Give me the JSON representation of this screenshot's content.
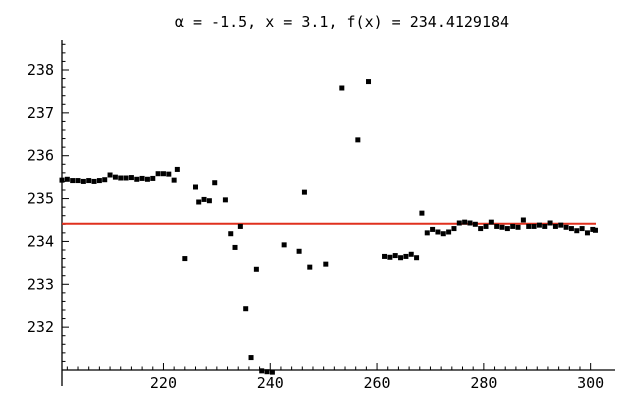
{
  "chart_data": {
    "type": "scatter",
    "title": "α = -1.5,  x = 3.1, f(x) = 234.4129184",
    "xlim": [
      201,
      301
    ],
    "ylim": [
      231,
      238.7
    ],
    "x_ticks": [
      220,
      240,
      260,
      280,
      300
    ],
    "y_ticks": [
      232,
      233,
      234,
      235,
      236,
      237,
      238
    ],
    "x_minor_step": 2,
    "y_minor_step": 0.2,
    "grid": false,
    "colors": {
      "points": "#000000",
      "reference_line": "#e0301e"
    },
    "reference_line": {
      "y": 234.4129184
    },
    "series": [
      {
        "points": [
          [
            201,
            235.43
          ],
          [
            202,
            235.45
          ],
          [
            203,
            235.42
          ],
          [
            204,
            235.42
          ],
          [
            205,
            235.4
          ],
          [
            206,
            235.42
          ],
          [
            207,
            235.4
          ],
          [
            208,
            235.42
          ],
          [
            209,
            235.44
          ],
          [
            210,
            235.55
          ],
          [
            211,
            235.5
          ],
          [
            212,
            235.48
          ],
          [
            213,
            235.48
          ],
          [
            214,
            235.49
          ],
          [
            215,
            235.45
          ],
          [
            216,
            235.47
          ],
          [
            217,
            235.45
          ],
          [
            218,
            235.47
          ],
          [
            219,
            235.58
          ],
          [
            220,
            235.58
          ],
          [
            221,
            235.57
          ],
          [
            222,
            235.43
          ],
          [
            222.6,
            235.68
          ],
          [
            224,
            233.6
          ],
          [
            226,
            235.27
          ],
          [
            226.6,
            234.92
          ],
          [
            227.6,
            234.98
          ],
          [
            228.6,
            234.95
          ],
          [
            229.6,
            235.37
          ],
          [
            231.6,
            234.97
          ],
          [
            232.6,
            234.18
          ],
          [
            233.4,
            233.86
          ],
          [
            234.4,
            234.35
          ],
          [
            235.4,
            232.43
          ],
          [
            236.4,
            231.29
          ],
          [
            237.4,
            233.35
          ],
          [
            238.4,
            230.98
          ],
          [
            239.4,
            230.96
          ],
          [
            240.4,
            230.95
          ],
          [
            242.6,
            233.92
          ],
          [
            245.4,
            233.77
          ],
          [
            246.4,
            235.15
          ],
          [
            247.4,
            233.4
          ],
          [
            250.4,
            233.47
          ],
          [
            253.4,
            237.58
          ],
          [
            256.4,
            236.37
          ],
          [
            258.4,
            237.73
          ],
          [
            261.4,
            233.65
          ],
          [
            262.4,
            233.63
          ],
          [
            263.4,
            233.67
          ],
          [
            264.4,
            233.62
          ],
          [
            265.4,
            233.65
          ],
          [
            266.4,
            233.7
          ],
          [
            267.4,
            233.62
          ],
          [
            268.4,
            234.66
          ],
          [
            269.4,
            234.2
          ],
          [
            270.4,
            234.28
          ],
          [
            271.4,
            234.22
          ],
          [
            272.4,
            234.18
          ],
          [
            273.4,
            234.22
          ],
          [
            274.4,
            234.3
          ],
          [
            275.4,
            234.43
          ],
          [
            276.4,
            234.45
          ],
          [
            277.4,
            234.43
          ],
          [
            278.4,
            234.4
          ],
          [
            279.4,
            234.3
          ],
          [
            280.4,
            234.35
          ],
          [
            281.4,
            234.45
          ],
          [
            282.4,
            234.35
          ],
          [
            283.4,
            234.33
          ],
          [
            284.4,
            234.3
          ],
          [
            285.4,
            234.35
          ],
          [
            286.4,
            234.33
          ],
          [
            287.4,
            234.5
          ],
          [
            288.4,
            234.35
          ],
          [
            289.4,
            234.35
          ],
          [
            290.4,
            234.38
          ],
          [
            291.4,
            234.35
          ],
          [
            292.4,
            234.43
          ],
          [
            293.4,
            234.35
          ],
          [
            294.4,
            234.38
          ],
          [
            295.4,
            234.33
          ],
          [
            296.4,
            234.3
          ],
          [
            297.4,
            234.25
          ],
          [
            298.4,
            234.3
          ],
          [
            299.4,
            234.2
          ],
          [
            300.4,
            234.28
          ],
          [
            300.9,
            234.26
          ]
        ]
      }
    ]
  }
}
